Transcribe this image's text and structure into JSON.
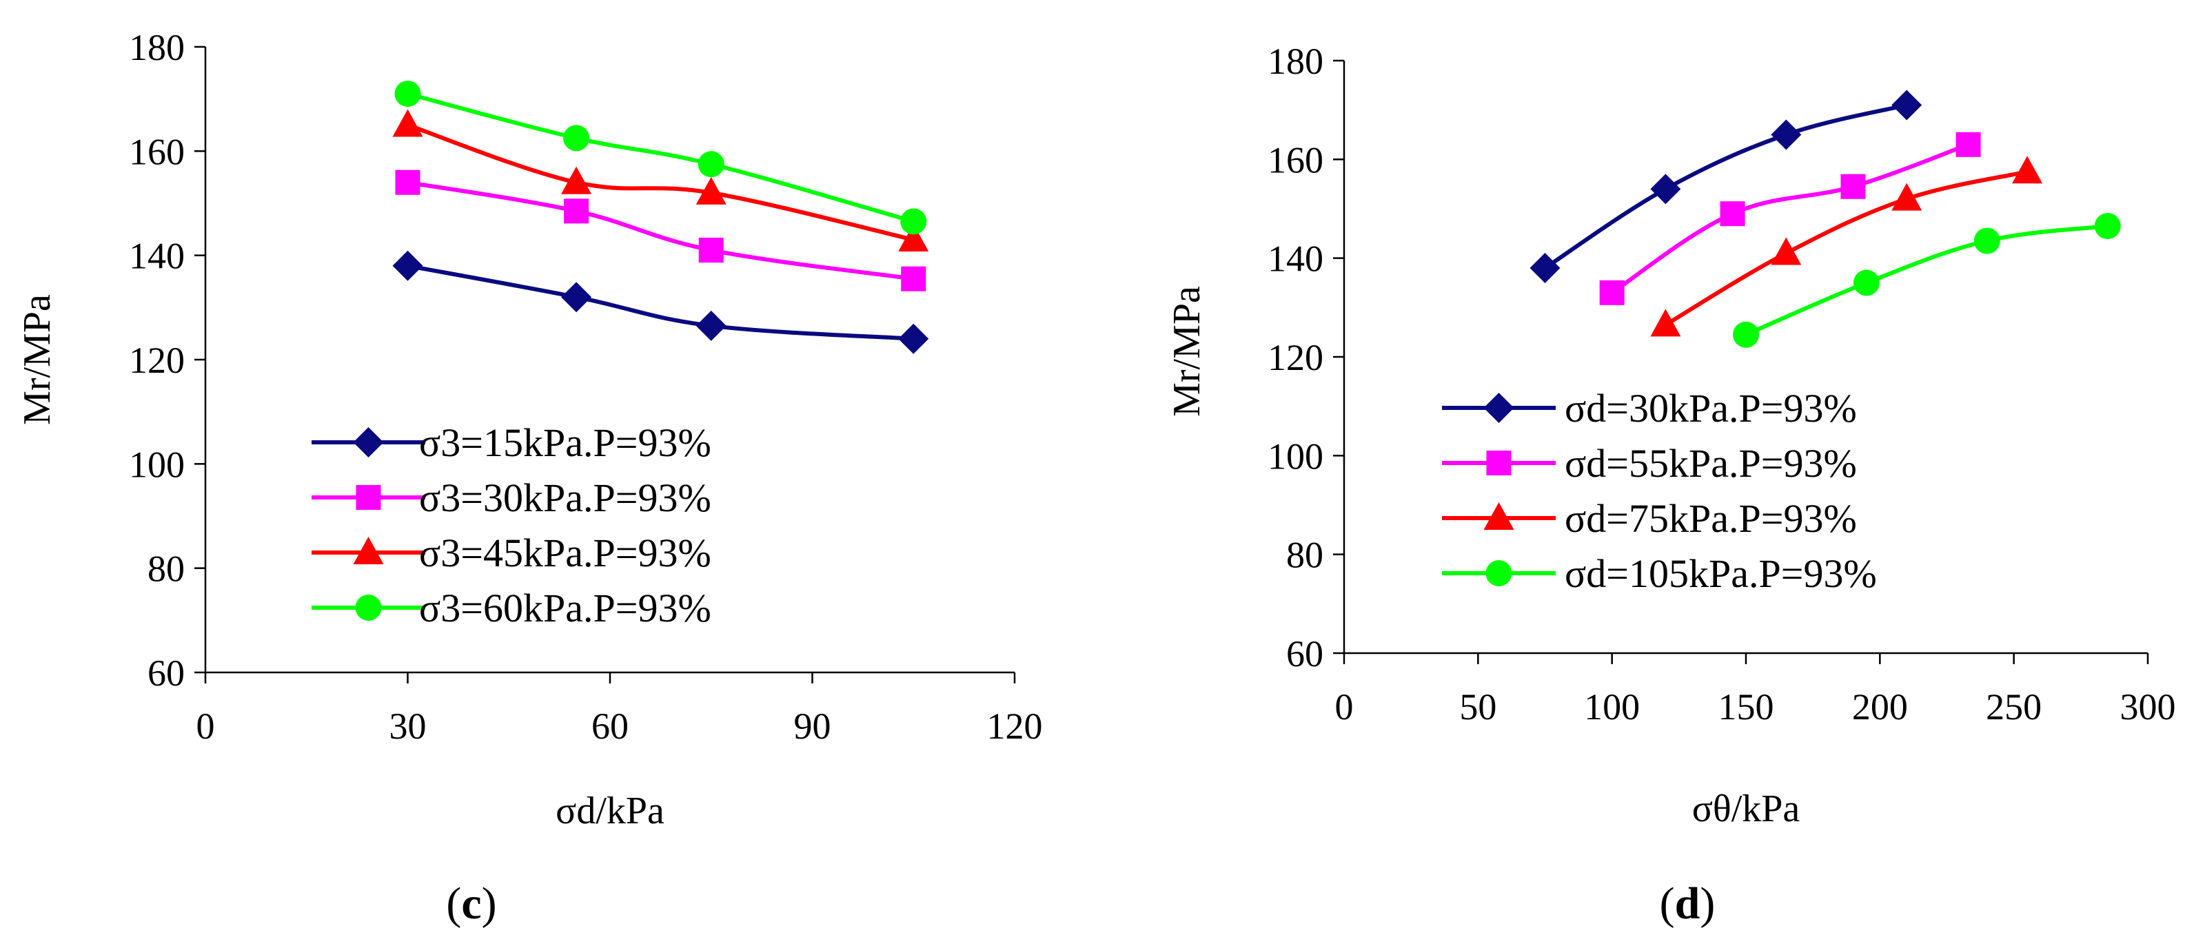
{
  "colors": {
    "navy": "#0a0a80",
    "magenta": "#ff00ff",
    "red": "#ff0000",
    "green": "#00ff00",
    "axis": "#000000"
  },
  "chart_data": [
    {
      "type": "line",
      "panel": "c",
      "caption": {
        "open": "(",
        "letter": "c",
        "close": ")"
      },
      "xlabel": "σd/kPa",
      "ylabel": "Mr/MPa",
      "xlim": [
        0,
        120
      ],
      "ylim": [
        60,
        180
      ],
      "xticks": [
        0,
        30,
        60,
        90,
        120
      ],
      "yticks": [
        60,
        80,
        100,
        120,
        140,
        160,
        180
      ],
      "grid": false,
      "legend_position": "bottom-left",
      "series": [
        {
          "name": "σ3=15kPa.P=93%",
          "color": "#0a0a80",
          "marker": "diamond",
          "x": [
            30,
            55,
            75,
            105
          ],
          "y": [
            138,
            132,
            126.5,
            124
          ]
        },
        {
          "name": "σ3=30kPa.P=93%",
          "color": "#ff00ff",
          "marker": "square",
          "x": [
            30,
            55,
            75,
            105
          ],
          "y": [
            154,
            148.5,
            141,
            135.5
          ]
        },
        {
          "name": "σ3=45kPa.P=93%",
          "color": "#ff0000",
          "marker": "triangle",
          "x": [
            30,
            55,
            75,
            105
          ],
          "y": [
            165,
            154,
            152,
            143
          ]
        },
        {
          "name": "σ3=60kPa.P=93%",
          "color": "#00ff00",
          "marker": "circle",
          "x": [
            30,
            55,
            75,
            105
          ],
          "y": [
            171,
            162.5,
            157.5,
            146.5
          ]
        }
      ]
    },
    {
      "type": "line",
      "panel": "d",
      "caption": {
        "open": "(",
        "letter": "d",
        "close": ")"
      },
      "xlabel": "σθ/kPa",
      "ylabel": "Mr/MPa",
      "xlim": [
        0,
        300
      ],
      "ylim": [
        60,
        180
      ],
      "xticks": [
        0,
        50,
        100,
        150,
        200,
        250,
        300
      ],
      "yticks": [
        60,
        80,
        100,
        120,
        140,
        160,
        180
      ],
      "grid": false,
      "legend_position": "bottom-left",
      "series": [
        {
          "name": "σd=30kPa.P=93%",
          "color": "#0a0a80",
          "marker": "diamond",
          "x": [
            75,
            120,
            165,
            210
          ],
          "y": [
            138,
            154,
            165,
            171
          ]
        },
        {
          "name": "σd=55kPa.P=93%",
          "color": "#ff00ff",
          "marker": "square",
          "x": [
            100,
            145,
            190,
            233
          ],
          "y": [
            133,
            149,
            154.5,
            163
          ]
        },
        {
          "name": "σd=75kPa.P=93%",
          "color": "#ff0000",
          "marker": "triangle",
          "x": [
            120,
            165,
            210,
            255
          ],
          "y": [
            126.5,
            141,
            152,
            157.5
          ]
        },
        {
          "name": "σd=105kPa.P=93%",
          "color": "#00ff00",
          "marker": "circle",
          "x": [
            150,
            195,
            240,
            285
          ],
          "y": [
            124.5,
            135,
            143.5,
            146.5
          ]
        }
      ]
    }
  ]
}
